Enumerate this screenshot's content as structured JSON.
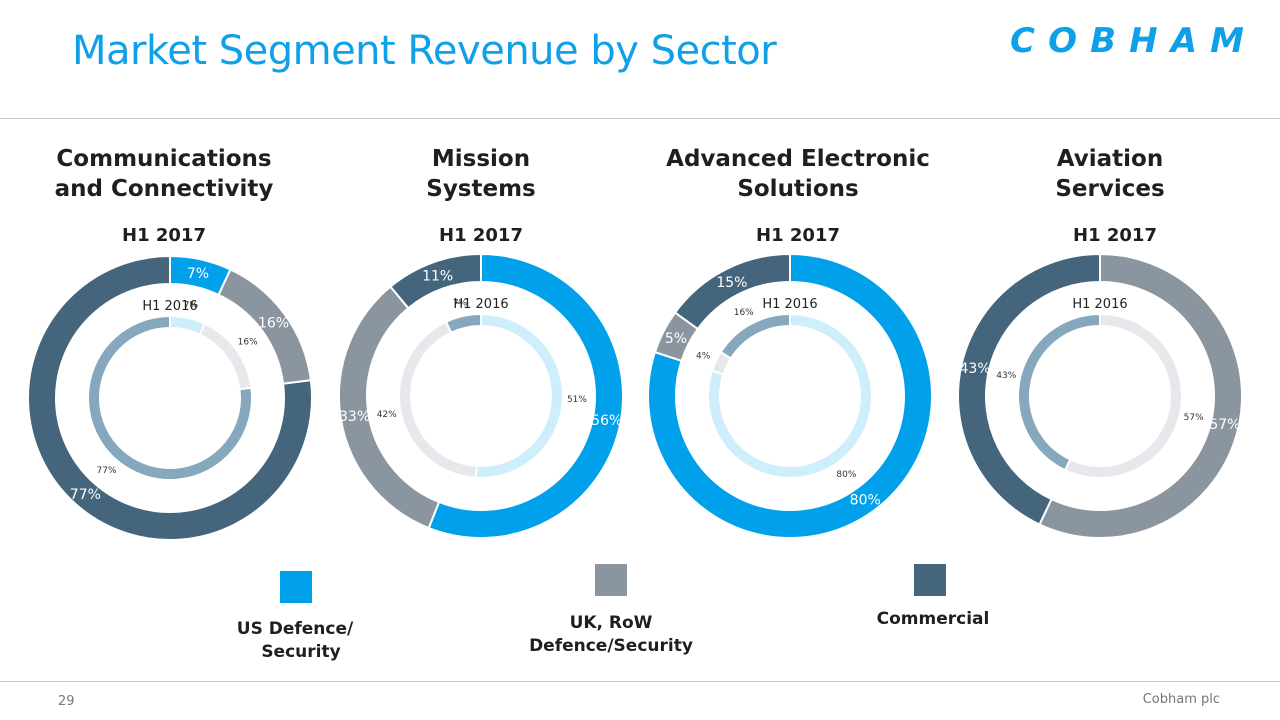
{
  "header": {
    "title": "Market Segment Revenue by Sector",
    "logo_text": "COBHAM"
  },
  "colors": {
    "us_defence_security": "#00a0eb",
    "uk_row_defence_security": "#8a959f",
    "commercial": "#44657b",
    "us_defence_security_inner": "#cfeefb",
    "uk_row_defence_security_inner": "#e6e8eb",
    "commercial_inner": "#86a8bd"
  },
  "legend": [
    {
      "key": "us_defence_security",
      "label_lines": [
        "US Defence/",
        "Security"
      ]
    },
    {
      "key": "uk_row_defence_security",
      "label_lines": [
        "UK, RoW",
        "Defence/Security"
      ]
    },
    {
      "key": "commercial",
      "label_lines": [
        "Commercial"
      ]
    }
  ],
  "chart_data": [
    {
      "type": "pie",
      "sector_lines": [
        "Communications",
        "and Connectivity"
      ],
      "outer": {
        "period": "H1 2017",
        "categories": [
          "US Defence/Security",
          "UK, RoW Defence/Security",
          "Commercial"
        ],
        "values": [
          7,
          16,
          77
        ],
        "labels": [
          "7%",
          "16%",
          "77%"
        ]
      },
      "inner": {
        "period": "H1 2016",
        "categories": [
          "US Defence/Security",
          "UK, RoW Defence/Security",
          "Commercial"
        ],
        "values": [
          7,
          16,
          77
        ],
        "labels": [
          "7%",
          "16%",
          "77%"
        ]
      }
    },
    {
      "type": "pie",
      "sector_lines": [
        "Mission",
        "Systems"
      ],
      "outer": {
        "period": "H1 2017",
        "categories": [
          "US Defence/Security",
          "UK, RoW Defence/Security",
          "Commercial"
        ],
        "values": [
          56,
          33,
          11
        ],
        "labels": [
          "56%",
          "33%",
          "11%"
        ]
      },
      "inner": {
        "period": "H1 2016",
        "categories": [
          "US Defence/Security",
          "UK, RoW Defence/Security",
          "Commercial"
        ],
        "values": [
          51,
          42,
          7
        ],
        "labels": [
          "51%",
          "42%",
          "7%"
        ]
      }
    },
    {
      "type": "pie",
      "sector_lines": [
        "Advanced Electronic",
        "Solutions"
      ],
      "outer": {
        "period": "H1 2017",
        "categories": [
          "US Defence/Security",
          "UK, RoW Defence/Security",
          "Commercial"
        ],
        "values": [
          80,
          5,
          15
        ],
        "labels": [
          "80%",
          "5%",
          "15%"
        ]
      },
      "inner": {
        "period": "H1 2016",
        "categories": [
          "US Defence/Security",
          "UK, RoW Defence/Security",
          "Commercial"
        ],
        "values": [
          80,
          4,
          16
        ],
        "labels": [
          "80%",
          "4%",
          "16%"
        ]
      }
    },
    {
      "type": "pie",
      "sector_lines": [
        "Aviation",
        "Services"
      ],
      "outer": {
        "period": "H1 2017",
        "categories": [
          "US Defence/Security",
          "UK, RoW Defence/Security",
          "Commercial"
        ],
        "values": [
          0,
          57,
          43
        ],
        "labels": [
          "",
          "57%",
          "43%"
        ]
      },
      "inner": {
        "period": "H1 2016",
        "categories": [
          "US Defence/Security",
          "UK, RoW Defence/Security",
          "Commercial"
        ],
        "values": [
          0,
          57,
          43
        ],
        "labels": [
          "",
          "57%",
          "43%"
        ]
      }
    }
  ],
  "footer": {
    "page_number": "29",
    "company": "Cobham plc"
  }
}
